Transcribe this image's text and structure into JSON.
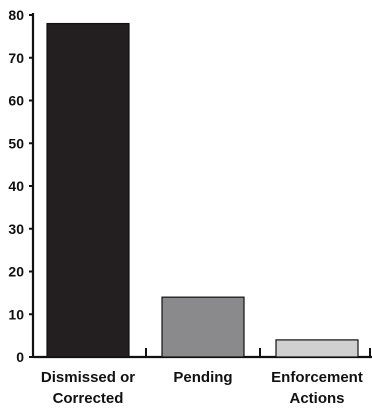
{
  "chart_data": {
    "type": "bar",
    "title": "",
    "xlabel": "",
    "ylabel": "",
    "categories": [
      [
        "Dismissed or",
        "Corrected"
      ],
      [
        "Pending"
      ],
      [
        "Enforcement",
        "Actions"
      ]
    ],
    "values": [
      78,
      14,
      4
    ],
    "bar_colors": [
      "#231f20",
      "#8a8a8c",
      "#d0d0d0"
    ],
    "ylim": [
      0,
      80
    ],
    "yticks": [
      0,
      10,
      20,
      30,
      40,
      50,
      60,
      70,
      80
    ],
    "grid": false,
    "legend": "none"
  }
}
